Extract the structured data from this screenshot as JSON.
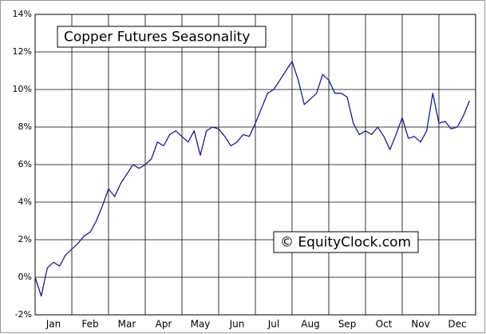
{
  "chart_data": {
    "type": "line",
    "title": "Copper Futures Seasonality",
    "annotation": "© EquityClock.com",
    "categories": [
      "Jan",
      "Feb",
      "Mar",
      "Apr",
      "May",
      "Jun",
      "Jul",
      "Aug",
      "Sep",
      "Oct",
      "Nov",
      "Dec"
    ],
    "color": "#1c1c8a",
    "values": [
      [
        0,
        -1.0,
        0.5,
        0.8,
        0.6,
        1.2
      ],
      [
        1.5,
        1.8,
        2.2,
        2.4,
        3.0,
        3.8
      ],
      [
        4.7,
        4.3,
        5.0,
        5.5,
        6.0,
        5.8
      ],
      [
        6.0,
        6.3,
        7.2,
        7.0,
        7.6,
        7.8
      ],
      [
        7.5,
        7.2,
        7.8,
        6.5,
        7.8,
        8.0
      ],
      [
        7.9,
        7.5,
        7.0,
        7.2,
        7.6,
        7.5
      ],
      [
        8.2,
        9.0,
        9.8,
        10.0,
        10.5,
        11.0
      ],
      [
        11.5,
        10.5,
        9.2,
        9.5,
        9.8,
        10.8
      ],
      [
        10.5,
        9.8,
        9.8,
        9.6,
        8.2,
        7.6
      ],
      [
        7.8,
        7.6,
        8.0,
        7.5,
        6.8,
        7.6
      ],
      [
        8.5,
        7.4,
        7.5,
        7.2,
        7.8,
        9.8
      ],
      [
        8.2,
        8.3,
        7.9,
        8.0,
        8.6,
        9.4
      ]
    ],
    "ylim": [
      -2,
      14
    ],
    "yticks": [
      {
        "value": -2,
        "label": "-2%"
      },
      {
        "value": 0,
        "label": "0%"
      },
      {
        "value": 2,
        "label": "2%"
      },
      {
        "value": 4,
        "label": "4%"
      },
      {
        "value": 6,
        "label": "6%"
      },
      {
        "value": 8,
        "label": "8%"
      },
      {
        "value": 10,
        "label": "10%"
      },
      {
        "value": 12,
        "label": "12%"
      },
      {
        "value": 14,
        "label": "14%"
      }
    ],
    "grid": true
  }
}
